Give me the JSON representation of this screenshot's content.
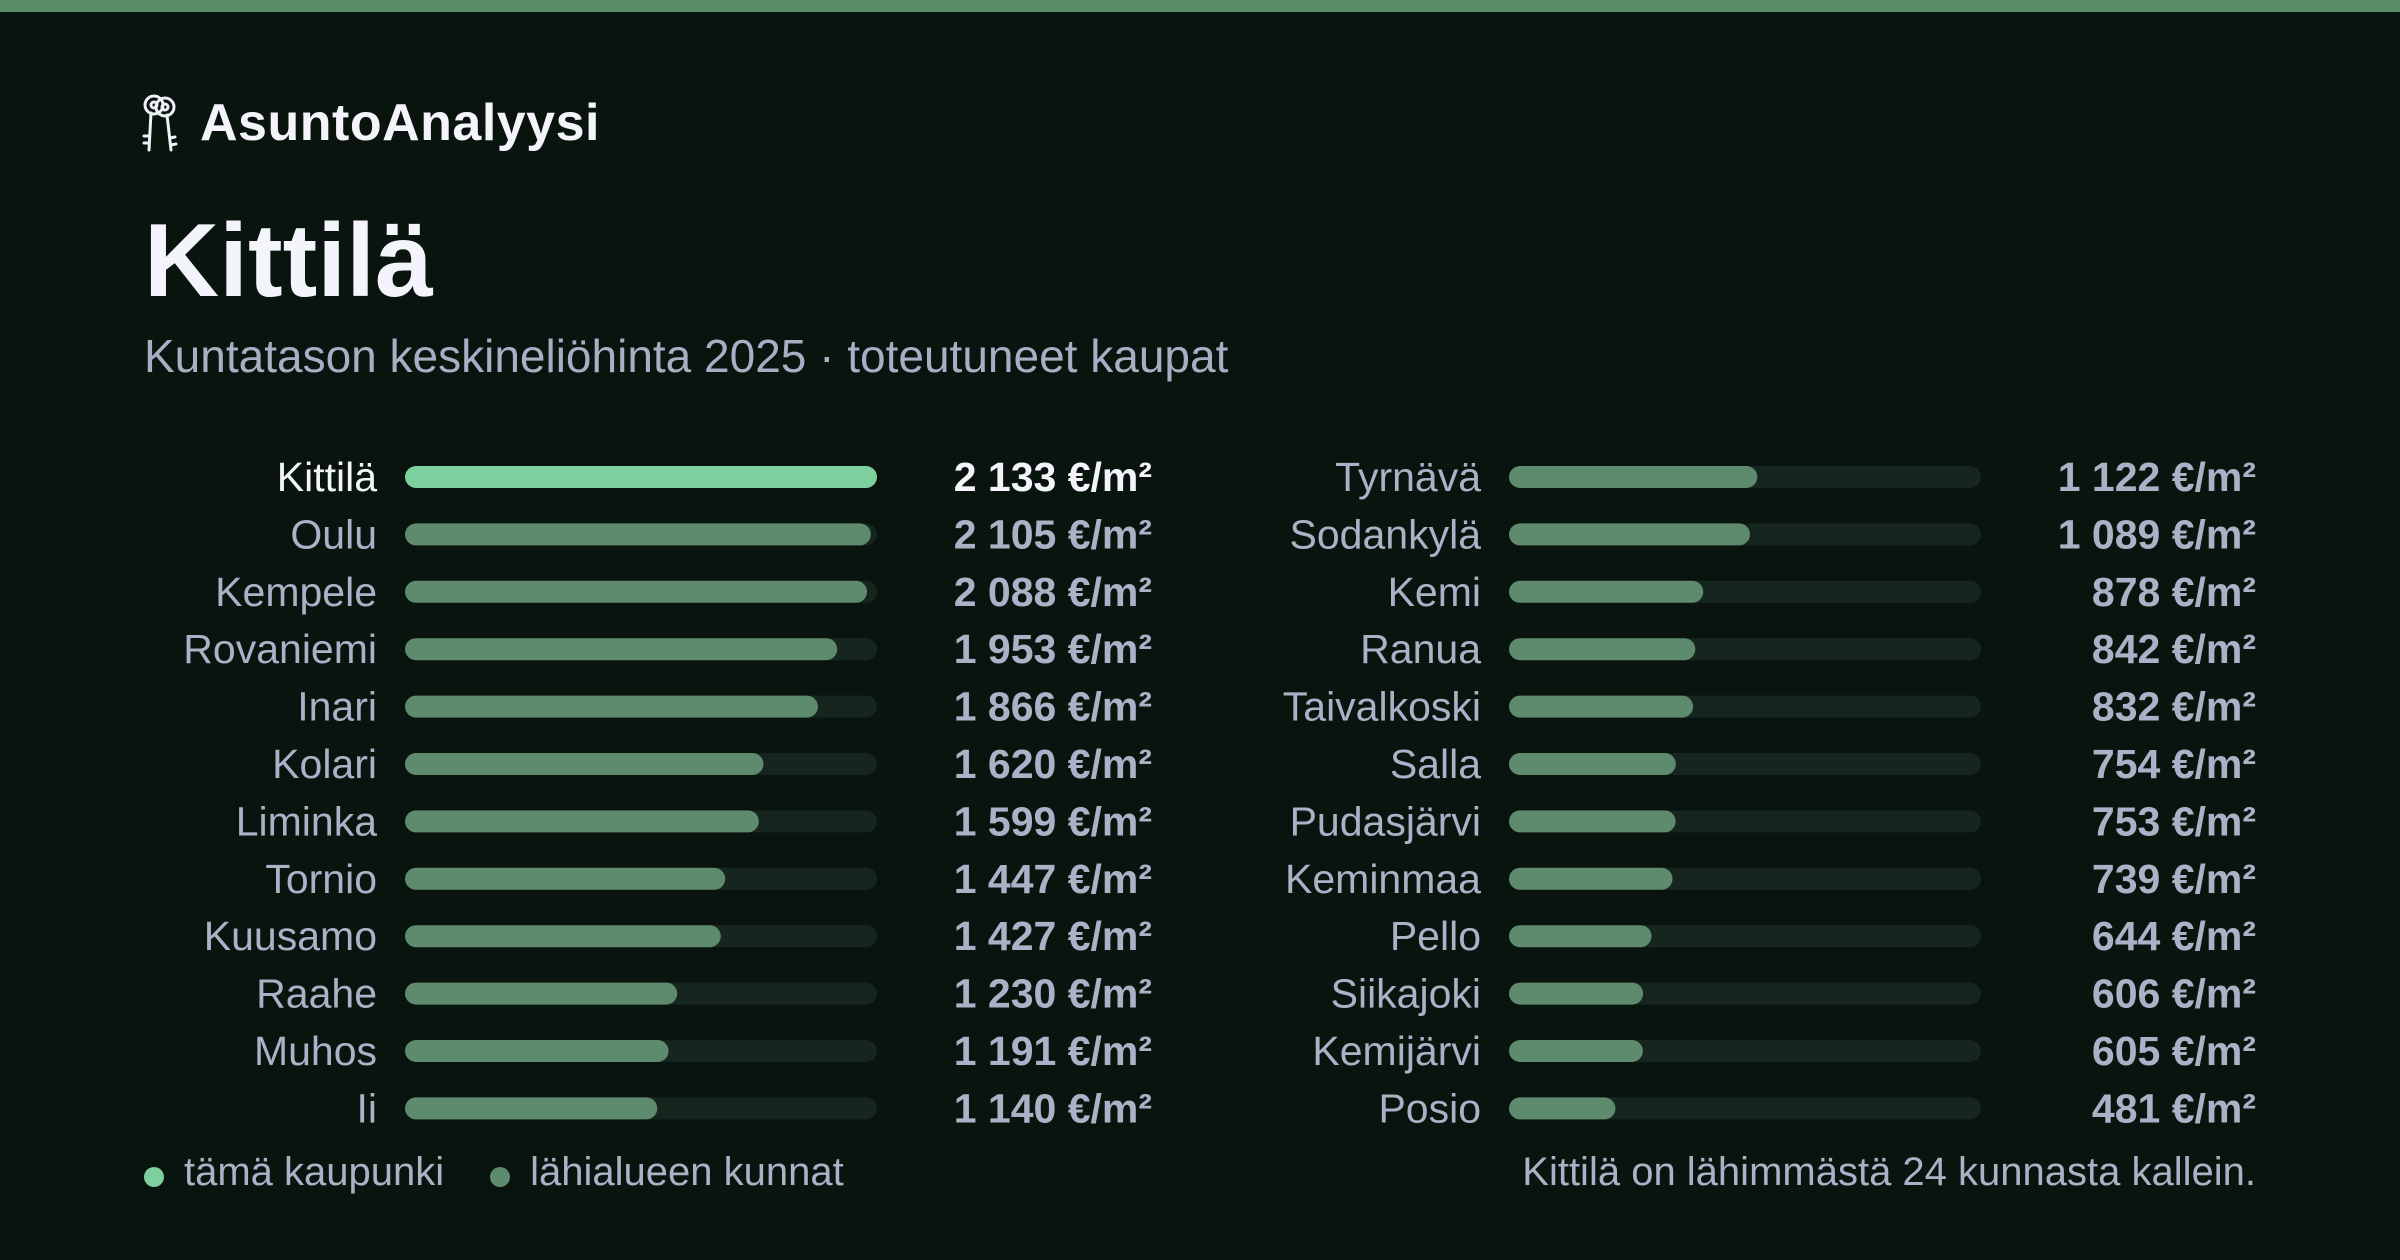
{
  "brand": {
    "name": "AsuntoAnalyysi",
    "icon": "keys-icon"
  },
  "header": {
    "title": "Kittilä",
    "subtitle": "Kuntatason keskineliöhinta 2025 · toteutuneet kaupat"
  },
  "colors": {
    "background": "#09140f",
    "accent_bar": "#7dcf9d",
    "neighbor_bar": "#5e8a6e",
    "track": "#17251f",
    "top_stripe": "#5a8e68"
  },
  "chart_data": {
    "type": "bar",
    "orientation": "horizontal",
    "unit": "€/m²",
    "xlim": [
      0,
      2133
    ],
    "highlight": "Kittilä",
    "categories": [
      "Kittilä",
      "Oulu",
      "Kempele",
      "Rovaniemi",
      "Inari",
      "Kolari",
      "Liminka",
      "Tornio",
      "Kuusamo",
      "Raahe",
      "Muhos",
      "Ii",
      "Tyrnävä",
      "Sodankylä",
      "Kemi",
      "Ranua",
      "Taivalkoski",
      "Salla",
      "Pudasjärvi",
      "Keminmaa",
      "Pello",
      "Siikajoki",
      "Kemijärvi",
      "Posio"
    ],
    "values": [
      2133,
      2105,
      2088,
      1953,
      1866,
      1620,
      1599,
      1447,
      1427,
      1230,
      1191,
      1140,
      1122,
      1089,
      878,
      842,
      832,
      754,
      753,
      739,
      644,
      606,
      605,
      481
    ],
    "value_labels": [
      "2 133 €/m²",
      "2 105 €/m²",
      "2 088 €/m²",
      "1 953 €/m²",
      "1 866 €/m²",
      "1 620 €/m²",
      "1 599 €/m²",
      "1 447 €/m²",
      "1 427 €/m²",
      "1 230 €/m²",
      "1 191 €/m²",
      "1 140 €/m²",
      "1 122 €/m²",
      "1 089 €/m²",
      "878 €/m²",
      "842 €/m²",
      "832 €/m²",
      "754 €/m²",
      "753 €/m²",
      "739 €/m²",
      "644 €/m²",
      "606 €/m²",
      "605 €/m²",
      "481 €/m²"
    ]
  },
  "legend": {
    "this_city": "tämä kaupunki",
    "neighbors": "lähialueen kunnat"
  },
  "footnote": "Kittilä on lähimmästä 24 kunnasta kallein."
}
